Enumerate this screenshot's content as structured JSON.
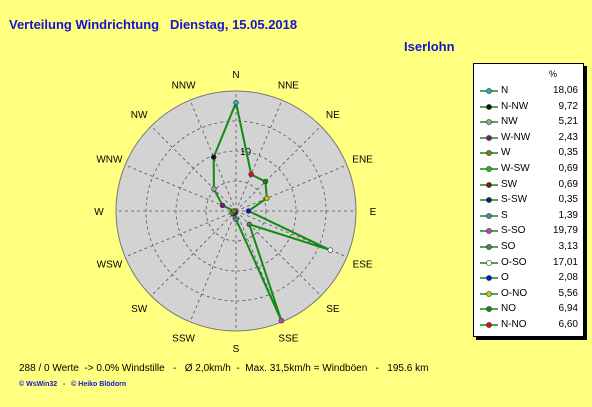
{
  "title": "Verteilung Windrichtung   Dienstag, 15.05.2018",
  "location": "Iserlohn",
  "legend_unit": "%",
  "ring_label": "10",
  "footer": "288 / 0 Werte  -> 0.0% Windstille   -   Ø 2,0km/h  -  Max. 31,5km/h = Windböen   -   195.6 km",
  "copyright": "© WsWin32   -   © Heiko Blödorn",
  "colors": {
    "background": "#ffff80",
    "rose_fill": "#d3d3d3",
    "line": "#138a13",
    "title": "#1515d0"
  },
  "chart_data": {
    "type": "radar",
    "unit": "%",
    "rmax": 20,
    "ring_values": [
      5,
      10,
      15,
      20
    ],
    "directions": [
      {
        "label": "N",
        "legend": "N",
        "value": 18.06,
        "color": "#16b8c0"
      },
      {
        "label": "NNE",
        "legend": "N-NO",
        "value": 6.6,
        "color": "#e01010"
      },
      {
        "label": "NE",
        "legend": "NO",
        "value": 6.94,
        "color": "#108a10"
      },
      {
        "label": "ENE",
        "legend": "O-NO",
        "value": 5.56,
        "color": "#c8c800"
      },
      {
        "label": "E",
        "legend": "O",
        "value": 2.08,
        "color": "#1010d0"
      },
      {
        "label": "ESE",
        "legend": "O-SO",
        "value": 17.01,
        "color": "#ffffff"
      },
      {
        "label": "SE",
        "legend": "SO",
        "value": 3.13,
        "color": "#508050"
      },
      {
        "label": "SSE",
        "legend": "S-SO",
        "value": 19.79,
        "color": "#c040c0"
      },
      {
        "label": "S",
        "legend": "S",
        "value": 1.39,
        "color": "#4a8aa0"
      },
      {
        "label": "SSW",
        "legend": "S-SW",
        "value": 0.35,
        "color": "#102060"
      },
      {
        "label": "SW",
        "legend": "SW",
        "value": 0.69,
        "color": "#7a2000"
      },
      {
        "label": "WSW",
        "legend": "W-SW",
        "value": 0.69,
        "color": "#18c018"
      },
      {
        "label": "W",
        "legend": "W",
        "value": 0.35,
        "color": "#788018"
      },
      {
        "label": "WNW",
        "legend": "W-NW",
        "value": 2.43,
        "color": "#702070"
      },
      {
        "label": "NW",
        "legend": "NW",
        "value": 5.21,
        "color": "#a0a0a0"
      },
      {
        "label": "NNW",
        "legend": "N-NW",
        "value": 9.72,
        "color": "#101010"
      }
    ],
    "legend_order": [
      "N",
      "N-NW",
      "NW",
      "W-NW",
      "W",
      "W-SW",
      "SW",
      "S-SW",
      "S",
      "S-SO",
      "SO",
      "O-SO",
      "O",
      "O-NO",
      "NO",
      "N-NO"
    ]
  }
}
